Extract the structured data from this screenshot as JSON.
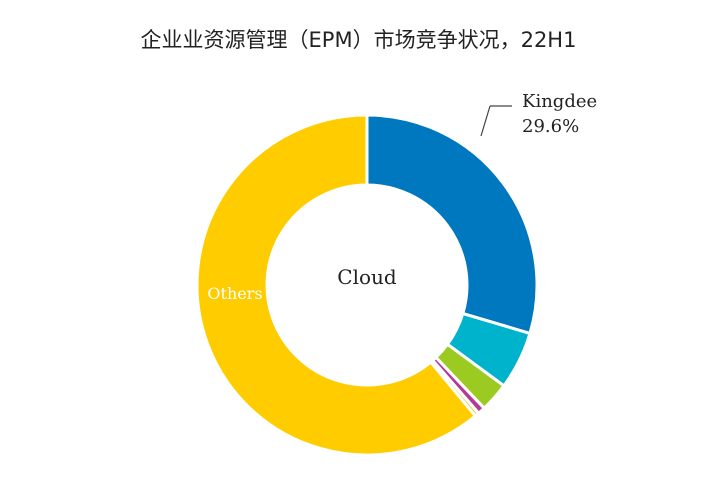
{
  "chart_data": {
    "type": "pie",
    "title": "企业业资源管理（EPM）市场竞争状况，22H1",
    "center_label": "Cloud",
    "slices": [
      {
        "value": 29.6,
        "color": "#0078BF",
        "label": "Kingdee",
        "value_label": "29.6%"
      },
      {
        "value": 5.5,
        "color": "#00B3CC",
        "label": "",
        "value_label": ""
      },
      {
        "value": 2.8,
        "color": "#9BCB21",
        "label": "",
        "value_label": ""
      },
      {
        "value": 0.7,
        "color": "#B33A96",
        "label": "",
        "value_label": ""
      },
      {
        "value": 0.4,
        "color": "#E5D548",
        "label": "",
        "value_label": ""
      },
      {
        "value": 61.0,
        "color": "#FFCC00",
        "label": "Others",
        "value_label": ""
      }
    ]
  }
}
